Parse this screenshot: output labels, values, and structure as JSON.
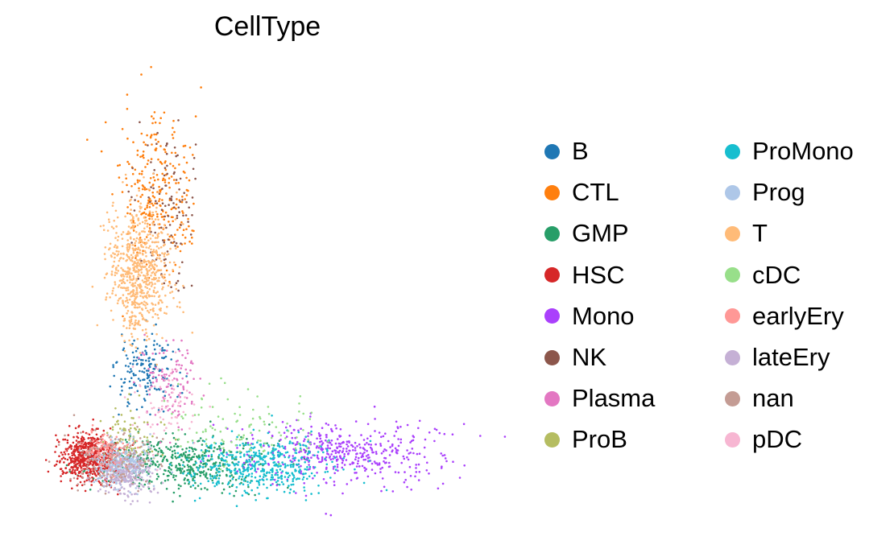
{
  "chart_data": {
    "type": "scatter",
    "title": "CellType",
    "xlabel": "",
    "ylabel": "",
    "grid": false,
    "axes_visible": false,
    "legend_position": "right",
    "legend_columns": 2,
    "xlim": [
      -1.0,
      10.0
    ],
    "ylim": [
      -1.0,
      10.0
    ],
    "series": [
      {
        "name": "B",
        "color": "#1f77b4",
        "count": 170,
        "center": [
          1.6,
          2.6
        ],
        "spread": [
          0.35,
          0.45
        ]
      },
      {
        "name": "CTL",
        "color": "#ff7f0e",
        "count": 280,
        "center": [
          1.85,
          6.6
        ],
        "spread": [
          0.4,
          0.9
        ]
      },
      {
        "name": "GMP",
        "color": "#279e68",
        "count": 480,
        "center": [
          2.4,
          0.55
        ],
        "spread": [
          0.9,
          0.3
        ]
      },
      {
        "name": "HSC",
        "color": "#d62728",
        "count": 600,
        "center": [
          0.3,
          0.7
        ],
        "spread": [
          0.32,
          0.3
        ]
      },
      {
        "name": "Mono",
        "color": "#aa40fc",
        "count": 460,
        "center": [
          6.1,
          0.8
        ],
        "spread": [
          1.1,
          0.35
        ]
      },
      {
        "name": "NK",
        "color": "#8c564b",
        "count": 110,
        "center": [
          2.05,
          6.3
        ],
        "spread": [
          0.35,
          0.9
        ]
      },
      {
        "name": "Plasma",
        "color": "#e377c2",
        "count": 110,
        "center": [
          2.2,
          2.3
        ],
        "spread": [
          0.35,
          0.5
        ]
      },
      {
        "name": "ProB",
        "color": "#b5bd61",
        "count": 90,
        "center": [
          1.2,
          1.1
        ],
        "spread": [
          0.35,
          0.35
        ]
      },
      {
        "name": "ProMono",
        "color": "#17becf",
        "count": 460,
        "center": [
          4.2,
          0.5
        ],
        "spread": [
          0.85,
          0.3
        ]
      },
      {
        "name": "Prog",
        "color": "#aec7e8",
        "count": 320,
        "center": [
          1.0,
          0.5
        ],
        "spread": [
          0.3,
          0.25
        ]
      },
      {
        "name": "T",
        "color": "#ffbb78",
        "count": 700,
        "center": [
          1.45,
          4.9
        ],
        "spread": [
          0.35,
          0.75
        ]
      },
      {
        "name": "cDC",
        "color": "#98df8a",
        "count": 110,
        "center": [
          3.8,
          1.4
        ],
        "spread": [
          0.9,
          0.45
        ]
      },
      {
        "name": "earlyEry",
        "color": "#ff9896",
        "count": 120,
        "center": [
          0.7,
          0.8
        ],
        "spread": [
          0.3,
          0.25
        ]
      },
      {
        "name": "lateEry",
        "color": "#c5b0d5",
        "count": 220,
        "center": [
          1.2,
          0.3
        ],
        "spread": [
          0.3,
          0.25
        ]
      },
      {
        "name": "nan",
        "color": "#c49c94",
        "count": 150,
        "center": [
          0.85,
          0.6
        ],
        "spread": [
          0.5,
          0.35
        ]
      },
      {
        "name": "pDC",
        "color": "#f7b6d2",
        "count": 70,
        "center": [
          2.0,
          2.0
        ],
        "spread": [
          0.4,
          0.45
        ]
      }
    ]
  }
}
